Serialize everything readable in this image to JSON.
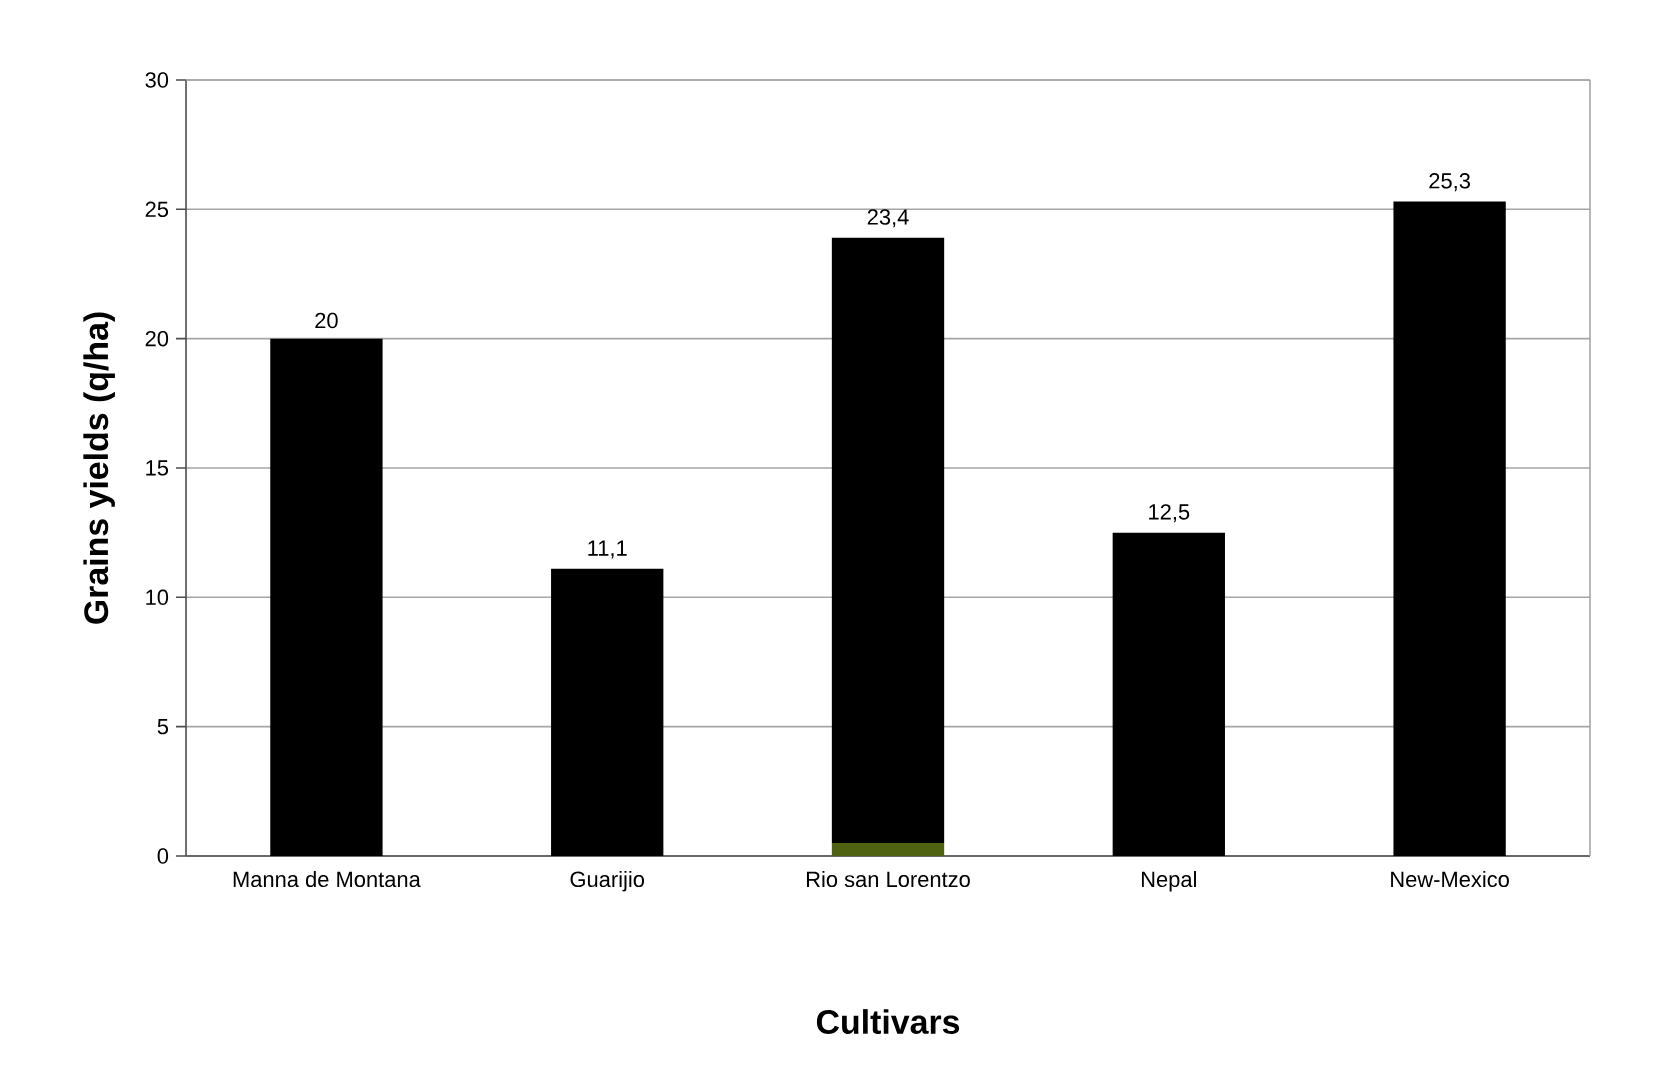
{
  "chart_data": {
    "type": "bar",
    "stacked": true,
    "xlabel": "Cultivars",
    "ylabel": "Grains yields (q/ha)",
    "categories": [
      "Manna de Montana",
      "Guarijio",
      "Rio san Lorentzo",
      "Nepal",
      "New-Mexico"
    ],
    "series": [
      {
        "color": "#4f6212",
        "values": [
          null,
          null,
          0.5,
          null,
          null
        ]
      },
      {
        "color": "#000000",
        "values": [
          20,
          11.1,
          23.4,
          12.5,
          25.3
        ],
        "value_labels": [
          "20",
          "11,1",
          "23,4",
          "12,5",
          "25,3"
        ]
      }
    ],
    "ylim": [
      0,
      30
    ],
    "yticks": [
      0,
      5,
      10,
      15,
      20,
      25,
      30
    ],
    "grid": "y"
  }
}
